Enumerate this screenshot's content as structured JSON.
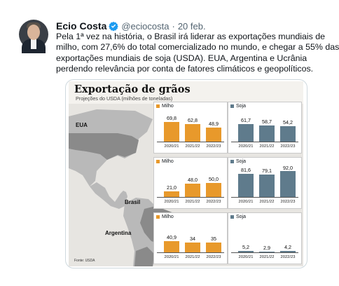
{
  "tweet": {
    "author_name": "Ecio Costa",
    "handle": "@eciocosta",
    "separator": "·",
    "date": "20 feb.",
    "text_lines": [
      "Pela 1ª vez na história, o Brasil irá liderar as exportações mundiais de",
      "milho, com 27,6% do total comercializado no mundo, e chegar a 55% das",
      "exportações mundiais de soja (USDA). EUA, Argentina e Ucrânia",
      "perdendo relevância por conta de fatores climáticos e geopolíticos."
    ]
  },
  "infographic": {
    "title": "Exportação de grãos",
    "subtitle": "Projeções do USDA (milhões de toneladas)",
    "credit": "Fonte: USDA",
    "map_labels": {
      "eua": "EUA",
      "brasil": "Brasil",
      "argentina": "Argentina"
    },
    "colors": {
      "milho": "#e8992b",
      "soja": "#5f7b8c",
      "land": "#b9b9b9",
      "highlight": "#8a8a8a",
      "sea": "#e7e5e1"
    }
  },
  "chart_data": [
    {
      "type": "bar",
      "country": "EUA",
      "title": "Milho",
      "categories": [
        "2020/21",
        "2021/22",
        "2022/23"
      ],
      "values": [
        69.8,
        62.8,
        48.9
      ],
      "value_labels": [
        "69,8",
        "62,8",
        "48,9"
      ],
      "ylim": [
        0,
        100
      ]
    },
    {
      "type": "bar",
      "country": "EUA",
      "title": "Soja",
      "categories": [
        "2020/21",
        "2021/22",
        "2022/23"
      ],
      "values": [
        61.7,
        58.7,
        54.2
      ],
      "value_labels": [
        "61,7",
        "58,7",
        "54,2"
      ],
      "ylim": [
        0,
        100
      ]
    },
    {
      "type": "bar",
      "country": "Brasil",
      "title": "Milho",
      "categories": [
        "2020/21",
        "2021/22",
        "2022/23"
      ],
      "values": [
        21.0,
        48.0,
        50.0
      ],
      "value_labels": [
        "21,0",
        "48,0",
        "50,0"
      ],
      "ylim": [
        0,
        100
      ]
    },
    {
      "type": "bar",
      "country": "Brasil",
      "title": "Soja",
      "categories": [
        "2020/21",
        "2021/22",
        "2022/23"
      ],
      "values": [
        81.6,
        79.1,
        92.0
      ],
      "value_labels": [
        "81,6",
        "79,1",
        "92,0"
      ],
      "ylim": [
        0,
        100
      ]
    },
    {
      "type": "bar",
      "country": "Argentina",
      "title": "Milho",
      "categories": [
        "2020/21",
        "2021/22",
        "2022/23"
      ],
      "values": [
        40.9,
        34,
        35
      ],
      "value_labels": [
        "40,9",
        "34",
        "35"
      ],
      "ylim": [
        0,
        100
      ]
    },
    {
      "type": "bar",
      "country": "Argentina",
      "title": "Soja",
      "categories": [
        "2020/21",
        "2021/22",
        "2022/23"
      ],
      "values": [
        5.2,
        2.9,
        4.2
      ],
      "value_labels": [
        "5,2",
        "2,9",
        "4,2"
      ],
      "ylim": [
        0,
        100
      ]
    }
  ]
}
